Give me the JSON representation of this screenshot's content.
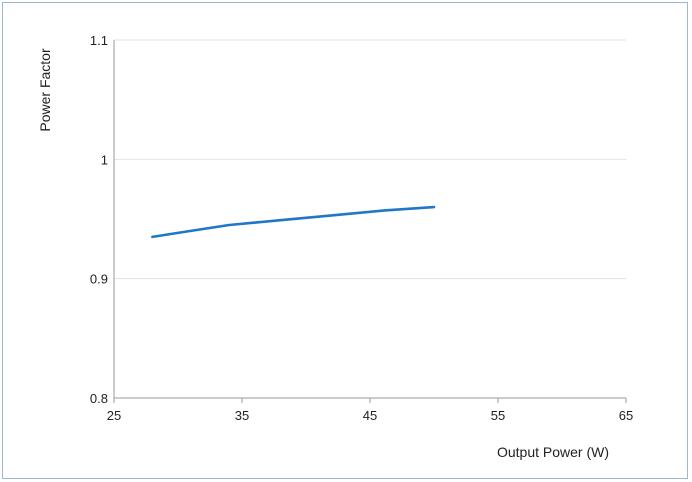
{
  "chart_data": {
    "type": "line",
    "title": "",
    "xlabel": "Output Power (W)",
    "ylabel": "Power Factor",
    "xlim": [
      25,
      65
    ],
    "ylim": [
      0.8,
      1.1
    ],
    "xticks": [
      "25",
      "35",
      "45",
      "55",
      "65"
    ],
    "yticks": [
      "0.8",
      "0.9",
      "1",
      "1.1"
    ],
    "grid": "horizontal",
    "series": [
      {
        "color": "#1f77c8",
        "x": [
          28,
          31,
          34,
          38,
          42,
          46,
          50
        ],
        "y": [
          0.935,
          0.94,
          0.945,
          0.949,
          0.953,
          0.957,
          0.96
        ]
      }
    ]
  }
}
